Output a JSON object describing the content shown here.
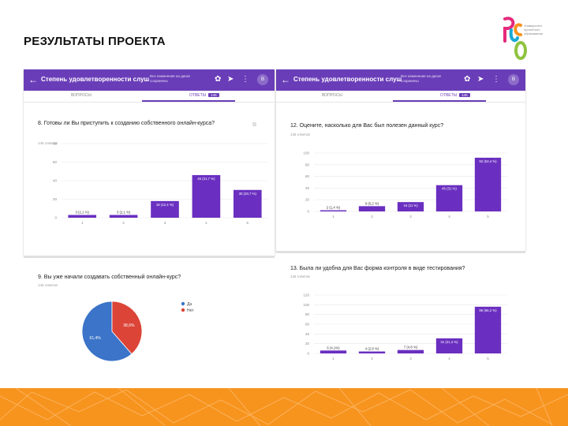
{
  "slide": {
    "title": "РЕЗУЛЬТАТЫ ПРОЕКТА"
  },
  "logo": {
    "caption": "Университет проектного образования"
  },
  "window_left": {
    "title": "Степень удовлетворенности слуш",
    "subtitle": "Все изменения на диске сохранены",
    "tab_questions": "ВОПРОСЫ",
    "tab_answers": "ОТВЕТЫ",
    "answers_count": "145",
    "avatar": "В"
  },
  "window_right": {
    "title": "Степень удовлетворенности слуш",
    "subtitle": "Все изменения на диске сохранены",
    "tab_questions": "ВОПРОСЫ",
    "tab_answers": "ОТВЕТЫ",
    "answers_count": "145",
    "avatar": "В"
  },
  "icons": [
    "back-arrow-icon",
    "palette-icon",
    "send-icon",
    "more-icon"
  ],
  "colors": {
    "purple": "#6a3db8",
    "bar": "#6a2fc0",
    "pie_blue": "#3b74c8",
    "pie_red": "#db4437",
    "orange": "#f7941e"
  },
  "chart_data": [
    {
      "type": "bar",
      "title": "8. Готовы ли Вы приступить к созданию собственного онлайн-курса?",
      "subtitle": "145 ответов",
      "categories": [
        "1",
        "2",
        "3",
        "4",
        "5"
      ],
      "values": [
        3,
        3,
        18,
        46,
        30
      ],
      "labels": [
        "3 (2,1 %)",
        "3 (2,1 %)",
        "18 (12,4 %)",
        "46 (31,7 %)",
        "30 (20,7 %)"
      ],
      "ylim": [
        0,
        60
      ],
      "ticks": [
        0,
        20,
        40,
        60,
        80
      ]
    },
    {
      "type": "bar",
      "title": "12. Оцените, насколько для Вас был полезен данный курс?",
      "subtitle": "145 ответов",
      "categories": [
        "1",
        "2",
        "3",
        "4",
        "5"
      ],
      "values": [
        2,
        9,
        16,
        45,
        92
      ],
      "labels": [
        "2 (1,4 %)",
        "9 (6,2 %)",
        "16 (11 %)",
        "45 (31 %)",
        "92 (63,4 %)"
      ],
      "ylim": [
        0,
        100
      ],
      "ticks": [
        0,
        20,
        40,
        60,
        80,
        100
      ]
    },
    {
      "type": "pie",
      "title": "9. Вы уже начали создавать собственный онлайн-курс?",
      "subtitle": "145 ответов",
      "legend": [
        "Да",
        "Нет"
      ],
      "values": [
        61.4,
        38.6
      ],
      "labels": [
        "61,4%",
        "38,6%"
      ]
    },
    {
      "type": "bar",
      "title": "13. Была ли удобна для Вас форма контроля в виде тестирования?",
      "subtitle": "145 ответов",
      "categories": [
        "1",
        "2",
        "3",
        "4",
        "5"
      ],
      "values": [
        6,
        4,
        7,
        31,
        96
      ],
      "labels": [
        "6 (4,1%)",
        "4 (2,8 %)",
        "7 (4,8 %)",
        "31 (21,4 %)",
        "96 (66,2 %)"
      ],
      "ylim": [
        0,
        120
      ],
      "ticks": [
        0,
        20,
        40,
        60,
        80,
        100,
        120
      ]
    }
  ]
}
